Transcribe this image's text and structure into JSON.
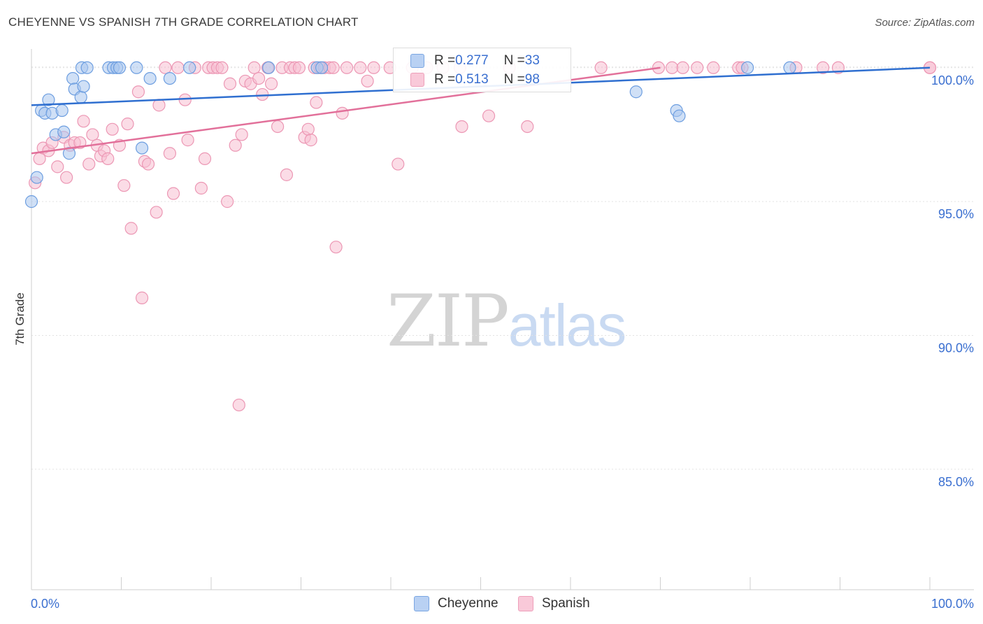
{
  "header": {
    "title": "CHEYENNE VS SPANISH 7TH GRADE CORRELATION CHART",
    "source": "Source: ZipAtlas.com"
  },
  "watermark": {
    "part1": "ZIP",
    "part2": "atlas"
  },
  "colors": {
    "cheyenne_fill": "#a9c7ef",
    "cheyenne_stroke": "#6d9ee0",
    "cheyenne_line": "#2f6fd0",
    "spanish_fill": "#f7bfd1",
    "spanish_stroke": "#ec97b4",
    "spanish_line": "#e2709a",
    "tick_label": "#3a6fd0",
    "grid": "#e3e3e3"
  },
  "legend_top": [
    {
      "r_label": "R = ",
      "r_value": "0.277",
      "n_label": "N = ",
      "n_value": "33"
    },
    {
      "r_label": "R = ",
      "r_value": "0.513",
      "n_label": "N = ",
      "n_value": "98"
    }
  ],
  "legend_bottom": [
    "Cheyenne",
    "Spanish"
  ],
  "chart_data": {
    "type": "scatter",
    "title": "CHEYENNE VS SPANISH 7TH GRADE CORRELATION CHART",
    "xlabel": "",
    "ylabel": "7th Grade",
    "xlim": [
      0,
      100
    ],
    "ylim": [
      80.5,
      100.7
    ],
    "x_tick_labels": [
      "0.0%",
      "100.0%"
    ],
    "y_ticks": [
      85,
      90,
      95,
      100
    ],
    "y_tick_labels": [
      "85.0%",
      "90.0%",
      "95.0%",
      "100.0%"
    ],
    "grid": "horizontal dashed",
    "legend_placement": "bottom",
    "series": [
      {
        "name": "Cheyenne",
        "R": 0.277,
        "N": 33,
        "trend": [
          [
            0,
            98.6
          ],
          [
            100,
            100.0
          ]
        ],
        "points": [
          [
            0.0,
            95.0
          ],
          [
            0.6,
            95.9
          ],
          [
            1.1,
            98.4
          ],
          [
            1.5,
            98.3
          ],
          [
            1.9,
            98.8
          ],
          [
            2.3,
            98.3
          ],
          [
            2.7,
            97.5
          ],
          [
            3.4,
            98.4
          ],
          [
            3.6,
            97.6
          ],
          [
            4.2,
            96.8
          ],
          [
            4.6,
            99.6
          ],
          [
            4.8,
            99.2
          ],
          [
            5.5,
            98.9
          ],
          [
            5.8,
            99.3
          ],
          [
            5.6,
            100.0
          ],
          [
            6.2,
            100.0
          ],
          [
            8.6,
            100.0
          ],
          [
            9.1,
            100.0
          ],
          [
            9.5,
            100.0
          ],
          [
            9.8,
            100.0
          ],
          [
            11.7,
            100.0
          ],
          [
            12.3,
            97.0
          ],
          [
            13.2,
            99.6
          ],
          [
            15.4,
            99.6
          ],
          [
            17.6,
            100.0
          ],
          [
            26.4,
            100.0
          ],
          [
            31.8,
            100.0
          ],
          [
            32.3,
            100.0
          ],
          [
            67.3,
            99.1
          ],
          [
            71.8,
            98.4
          ],
          [
            72.1,
            98.2
          ],
          [
            79.7,
            100.0
          ],
          [
            84.4,
            100.0
          ]
        ]
      },
      {
        "name": "Spanish",
        "R": 0.513,
        "N": 98,
        "trend": [
          [
            0,
            96.8
          ],
          [
            70,
            100.0
          ]
        ],
        "points": [
          [
            0.4,
            95.7
          ],
          [
            0.9,
            96.6
          ],
          [
            1.3,
            97.0
          ],
          [
            1.9,
            96.9
          ],
          [
            2.3,
            97.2
          ],
          [
            2.9,
            96.3
          ],
          [
            3.6,
            97.4
          ],
          [
            3.9,
            95.9
          ],
          [
            4.3,
            97.1
          ],
          [
            4.8,
            97.2
          ],
          [
            5.4,
            97.2
          ],
          [
            5.8,
            98.0
          ],
          [
            6.4,
            96.4
          ],
          [
            6.8,
            97.5
          ],
          [
            7.3,
            97.1
          ],
          [
            7.7,
            96.7
          ],
          [
            8.1,
            96.9
          ],
          [
            8.5,
            96.6
          ],
          [
            9.0,
            97.7
          ],
          [
            9.8,
            97.1
          ],
          [
            10.3,
            95.6
          ],
          [
            10.7,
            97.9
          ],
          [
            11.1,
            94.0
          ],
          [
            11.9,
            99.1
          ],
          [
            12.3,
            91.4
          ],
          [
            12.6,
            96.5
          ],
          [
            13.0,
            96.4
          ],
          [
            13.9,
            94.6
          ],
          [
            14.2,
            98.6
          ],
          [
            14.9,
            100.0
          ],
          [
            15.4,
            96.8
          ],
          [
            15.8,
            95.3
          ],
          [
            16.3,
            100.0
          ],
          [
            17.1,
            98.8
          ],
          [
            17.4,
            97.3
          ],
          [
            18.2,
            100.0
          ],
          [
            18.9,
            95.5
          ],
          [
            19.3,
            96.6
          ],
          [
            19.7,
            100.0
          ],
          [
            20.2,
            100.0
          ],
          [
            20.7,
            100.0
          ],
          [
            21.2,
            100.0
          ],
          [
            21.8,
            95.0
          ],
          [
            22.1,
            99.4
          ],
          [
            22.7,
            97.1
          ],
          [
            23.4,
            97.5
          ],
          [
            23.8,
            99.5
          ],
          [
            23.1,
            87.4
          ],
          [
            24.4,
            99.4
          ],
          [
            24.8,
            100.0
          ],
          [
            25.3,
            99.6
          ],
          [
            25.7,
            99.0
          ],
          [
            26.3,
            100.0
          ],
          [
            26.7,
            99.4
          ],
          [
            27.4,
            97.8
          ],
          [
            27.9,
            100.0
          ],
          [
            28.4,
            96.0
          ],
          [
            28.8,
            100.0
          ],
          [
            29.3,
            100.0
          ],
          [
            29.8,
            100.0
          ],
          [
            30.4,
            97.4
          ],
          [
            30.8,
            97.7
          ],
          [
            31.1,
            97.3
          ],
          [
            31.5,
            100.0
          ],
          [
            32.1,
            100.0
          ],
          [
            32.6,
            100.0
          ],
          [
            33.2,
            100.0
          ],
          [
            33.6,
            100.0
          ],
          [
            31.7,
            98.7
          ],
          [
            33.9,
            93.3
          ],
          [
            34.6,
            98.3
          ],
          [
            35.1,
            100.0
          ],
          [
            36.6,
            100.0
          ],
          [
            37.4,
            99.5
          ],
          [
            38.1,
            100.0
          ],
          [
            39.9,
            100.0
          ],
          [
            40.8,
            96.4
          ],
          [
            42.4,
            100.0
          ],
          [
            44.0,
            100.0
          ],
          [
            45.8,
            100.0
          ],
          [
            47.7,
            100.0
          ],
          [
            47.9,
            97.8
          ],
          [
            50.9,
            98.2
          ],
          [
            53.2,
            100.0
          ],
          [
            55.2,
            97.8
          ],
          [
            63.4,
            100.0
          ],
          [
            69.8,
            100.0
          ],
          [
            71.3,
            100.0
          ],
          [
            72.5,
            100.0
          ],
          [
            74.1,
            100.0
          ],
          [
            75.9,
            100.0
          ],
          [
            78.7,
            100.0
          ],
          [
            79.1,
            100.0
          ],
          [
            85.1,
            100.0
          ],
          [
            88.1,
            100.0
          ],
          [
            89.8,
            100.0
          ],
          [
            100.0,
            100.0
          ],
          [
            100.0,
            100.0
          ]
        ]
      }
    ]
  }
}
